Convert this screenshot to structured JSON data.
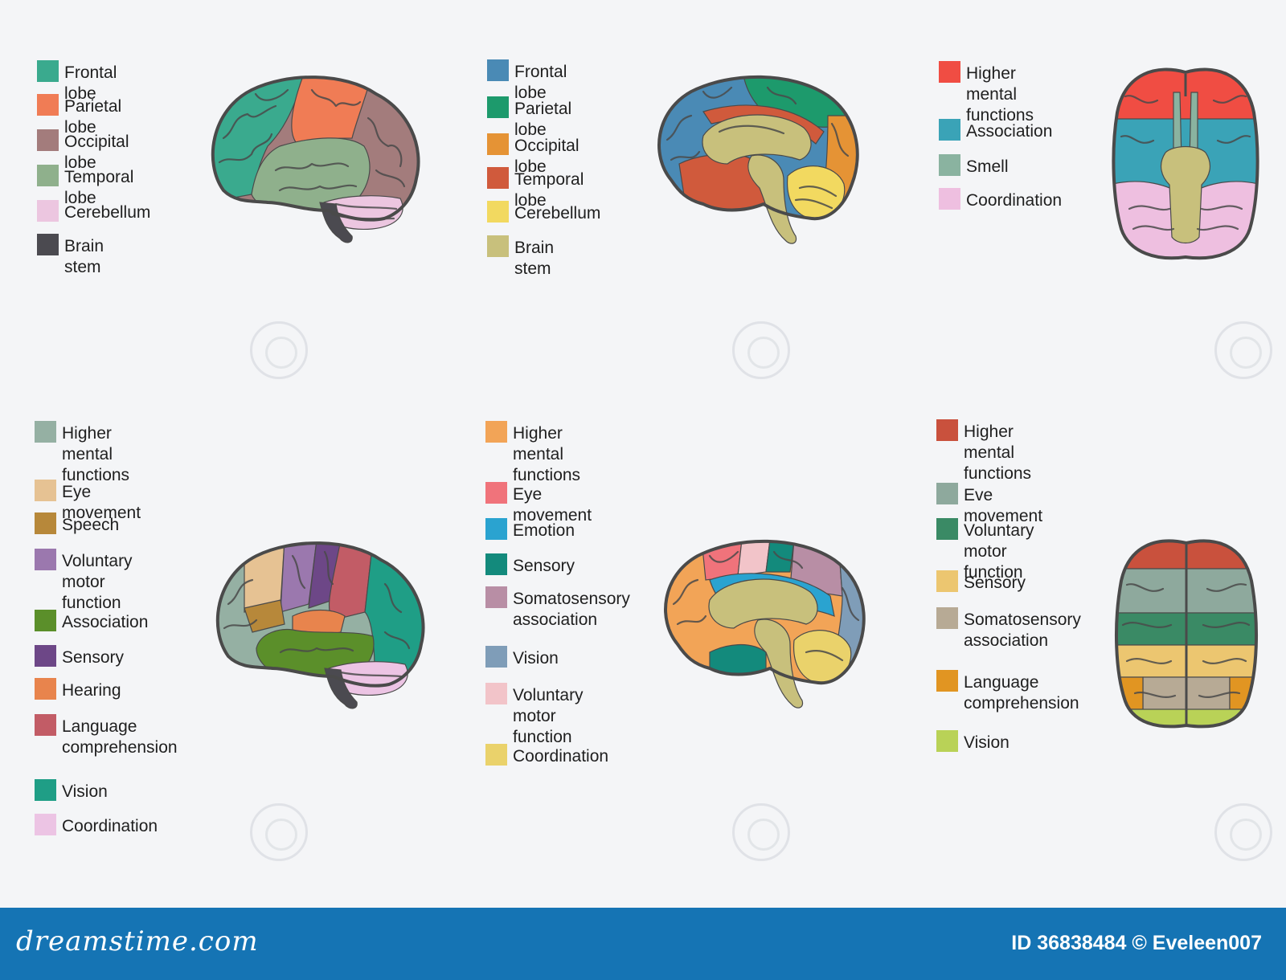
{
  "panels": [
    {
      "view": "lateral",
      "legend": [
        {
          "label": "Frontal lobe",
          "color": "#3aaa8e"
        },
        {
          "label": "Parietal lobe",
          "color": "#f07c55"
        },
        {
          "label": "Occipital lobe",
          "color": "#a37c7c"
        },
        {
          "label": "Temporal lobe",
          "color": "#8fb08c"
        },
        {
          "label": "Cerebellum",
          "color": "#ecc6e0"
        },
        {
          "label": "Brain stem",
          "color": "#4b4a50"
        }
      ]
    },
    {
      "view": "sagittal",
      "legend": [
        {
          "label": "Frontal lobe",
          "color": "#4a8ab5"
        },
        {
          "label": "Parietal lobe",
          "color": "#1d9a6c"
        },
        {
          "label": "Occipital lobe",
          "color": "#e59335"
        },
        {
          "label": "Temporal lobe",
          "color": "#d05a3c"
        },
        {
          "label": "Cerebellum",
          "color": "#f2d960"
        },
        {
          "label": "Brain stem",
          "color": "#c8c07c"
        }
      ]
    },
    {
      "view": "inferior",
      "legend": [
        {
          "label": "Higher mental\nfunctions",
          "color": "#f04d43"
        },
        {
          "label": "Association",
          "color": "#3aa3b7"
        },
        {
          "label": "Smell",
          "color": "#8ab3a0"
        },
        {
          "label": "Coordination",
          "color": "#eebfe0"
        }
      ]
    },
    {
      "view": "lateral-functional",
      "legend": [
        {
          "label": "Higher mental\nfunctions",
          "color": "#95b0a3"
        },
        {
          "label": "Eye movement",
          "color": "#e6c293"
        },
        {
          "label": "Speech",
          "color": "#b7883a"
        },
        {
          "label": "Voluntary motor\nfunction",
          "color": "#9b78ae"
        },
        {
          "label": "Association",
          "color": "#5b8f2a"
        },
        {
          "label": "Sensory",
          "color": "#6d4787"
        },
        {
          "label": "Hearing",
          "color": "#e8844d"
        },
        {
          "label": "Language\ncomprehension",
          "color": "#c25c66"
        },
        {
          "label": "Vision",
          "color": "#1f9e86"
        },
        {
          "label": "Coordination",
          "color": "#ecc4e4"
        }
      ]
    },
    {
      "view": "sagittal-functional",
      "legend": [
        {
          "label": "Higher mental\nfunctions",
          "color": "#f2a457"
        },
        {
          "label": "Eye movement",
          "color": "#f0737b"
        },
        {
          "label": "Emotion",
          "color": "#2aa3d0"
        },
        {
          "label": "Sensory",
          "color": "#138a7c"
        },
        {
          "label": "Somatosensory\nassociation",
          "color": "#b88ea5"
        },
        {
          "label": "Vision",
          "color": "#7f9db8"
        },
        {
          "label": "Voluntary motor\nfunction",
          "color": "#f2c4c9"
        },
        {
          "label": "Coordination",
          "color": "#ead26b"
        }
      ]
    },
    {
      "view": "superior",
      "legend": [
        {
          "label": "Higher mental\nfunctions",
          "color": "#c9513d"
        },
        {
          "label": "Eve movement",
          "color": "#8ea99d"
        },
        {
          "label": "Voluntary motor\nfunction",
          "color": "#3a8a65"
        },
        {
          "label": "Sensory",
          "color": "#ecc670"
        },
        {
          "label": "Somatosensory\nassociation",
          "color": "#b7aa95"
        },
        {
          "label": "Language\ncomprehension",
          "color": "#e19522"
        },
        {
          "label": "Vision",
          "color": "#b9d257"
        }
      ]
    }
  ],
  "footer": {
    "brand": "dreamstime.com",
    "credit": "ID 36838484 © Eveleen007"
  }
}
